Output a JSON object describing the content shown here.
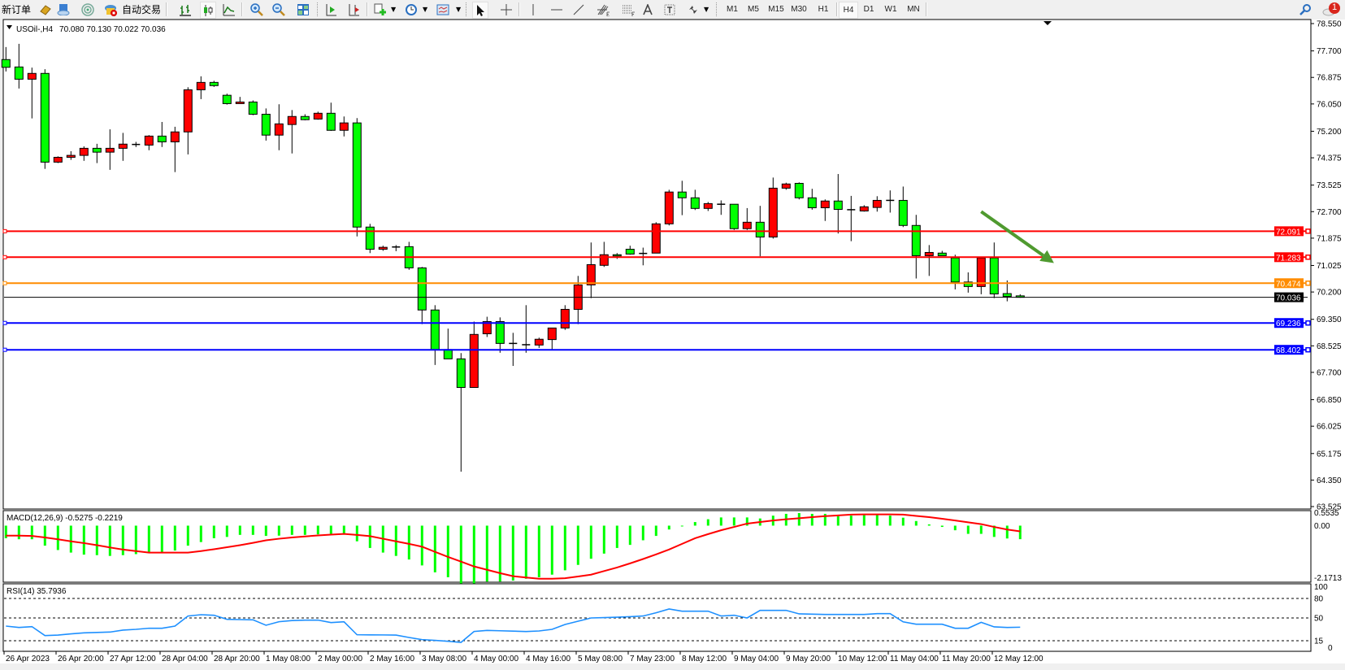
{
  "toolbar": {
    "new_order": "新订单",
    "auto_trading": "自动交易",
    "timeframes": [
      "M1",
      "M5",
      "M15",
      "M30",
      "H1",
      "H4",
      "D1",
      "W1",
      "MN"
    ],
    "active_timeframe": "H4",
    "notification_count": "1",
    "icons": [
      "gold-bars-icon",
      "cloud-icon",
      "signal-icon",
      "autotrading-icon",
      "bar-chart-icon",
      "candlestick-icon",
      "line-chart-icon",
      "zoom-in-icon",
      "zoom-out-icon",
      "tile-windows-icon",
      "autoscroll-icon",
      "chart-shift-icon",
      "indicators-icon",
      "periods-icon",
      "templates-icon",
      "cursor-icon",
      "crosshair-icon",
      "vertical-line-icon",
      "horizontal-line-icon",
      "trendline-icon",
      "fibonacci-fan-icon",
      "fibonacci-retracement-icon",
      "text-icon",
      "text-label-icon",
      "arrows-icon",
      "search-icon",
      "notification-icon"
    ]
  },
  "chart_header": {
    "symbol": "USOil-,H4",
    "ohlc": "70.080 70.130 70.022 70.036"
  },
  "chart_data": {
    "type": "candlestick",
    "symbol": "USOil-",
    "timeframe": "H4",
    "colors": {
      "bull": "#ff0000",
      "bear": "#00ff00",
      "outline": "#000000"
    },
    "ylim": [
      63.525,
      78.55
    ],
    "price_ticks": [
      "78.550",
      "77.700",
      "76.875",
      "76.050",
      "75.200",
      "74.375",
      "73.525",
      "72.700",
      "71.875",
      "71.025",
      "70.200",
      "69.350",
      "68.525",
      "67.700",
      "66.850",
      "66.025",
      "65.175",
      "64.350",
      "63.525"
    ],
    "time_labels": [
      "26 Apr 2023",
      "26 Apr 20:00",
      "27 Apr 12:00",
      "28 Apr 04:00",
      "28 Apr 20:00",
      "1 May 08:00",
      "2 May 00:00",
      "2 May 16:00",
      "3 May 08:00",
      "4 May 00:00",
      "4 May 16:00",
      "5 May 08:00",
      "7 May 23:00",
      "8 May 12:00",
      "9 May 04:00",
      "9 May 20:00",
      "10 May 12:00",
      "11 May 04:00",
      "11 May 20:00",
      "12 May 12:00"
    ],
    "ohlc": [
      [
        77.43,
        77.82,
        77.06,
        77.19
      ],
      [
        77.2,
        77.92,
        76.53,
        76.82
      ],
      [
        76.82,
        77.18,
        75.6,
        77.0
      ],
      [
        77.0,
        77.13,
        74.03,
        74.24
      ],
      [
        74.24,
        74.42,
        74.21,
        74.39
      ],
      [
        74.39,
        74.58,
        74.31,
        74.45
      ],
      [
        74.45,
        74.73,
        74.28,
        74.67
      ],
      [
        74.67,
        74.81,
        74.21,
        74.55
      ],
      [
        74.55,
        75.26,
        74.0,
        74.67
      ],
      [
        74.67,
        75.15,
        74.28,
        74.8
      ],
      [
        74.79,
        74.87,
        74.71,
        74.79
      ],
      [
        74.77,
        75.08,
        74.61,
        75.05
      ],
      [
        75.05,
        75.49,
        74.71,
        74.87
      ],
      [
        74.87,
        75.34,
        73.93,
        75.18
      ],
      [
        75.18,
        76.57,
        74.48,
        76.49
      ],
      [
        76.49,
        76.91,
        76.2,
        76.72
      ],
      [
        76.72,
        76.77,
        76.58,
        76.62
      ],
      [
        76.32,
        76.37,
        76.03,
        76.06
      ],
      [
        76.06,
        76.27,
        76.06,
        76.11
      ],
      [
        76.11,
        76.16,
        75.7,
        75.73
      ],
      [
        75.73,
        75.91,
        74.91,
        75.08
      ],
      [
        75.08,
        76.04,
        74.61,
        75.43
      ],
      [
        75.41,
        75.86,
        74.51,
        75.66
      ],
      [
        75.66,
        75.73,
        75.54,
        75.56
      ],
      [
        75.58,
        75.81,
        75.56,
        75.76
      ],
      [
        75.76,
        76.09,
        75.21,
        75.23
      ],
      [
        75.23,
        75.66,
        75.04,
        75.46
      ],
      [
        75.46,
        75.61,
        71.93,
        72.22
      ],
      [
        72.22,
        72.32,
        71.41,
        71.53
      ],
      [
        71.53,
        71.64,
        71.48,
        71.59
      ],
      [
        71.6,
        71.66,
        71.47,
        71.6
      ],
      [
        71.61,
        71.76,
        70.89,
        70.95
      ],
      [
        70.95,
        70.98,
        69.2,
        69.64
      ],
      [
        69.64,
        69.79,
        67.93,
        68.41
      ],
      [
        68.41,
        69.06,
        68.12,
        68.12
      ],
      [
        68.12,
        68.3,
        64.61,
        67.23
      ],
      [
        67.23,
        69.28,
        67.23,
        68.88
      ],
      [
        68.9,
        69.43,
        68.8,
        69.28
      ],
      [
        69.28,
        69.41,
        68.31,
        68.6
      ],
      [
        68.6,
        68.93,
        67.9,
        68.6
      ],
      [
        68.56,
        69.79,
        68.31,
        68.56
      ],
      [
        68.55,
        68.78,
        68.46,
        68.73
      ],
      [
        68.72,
        69.08,
        68.42,
        69.08
      ],
      [
        69.08,
        69.79,
        69.02,
        69.66
      ],
      [
        69.66,
        70.7,
        69.2,
        70.42
      ],
      [
        70.42,
        71.74,
        70.01,
        71.05
      ],
      [
        71.03,
        71.76,
        70.98,
        71.36
      ],
      [
        71.36,
        71.41,
        71.23,
        71.32
      ],
      [
        71.53,
        71.64,
        71.36,
        71.38
      ],
      [
        71.4,
        71.58,
        71.03,
        71.4
      ],
      [
        71.41,
        72.37,
        71.41,
        72.32
      ],
      [
        72.32,
        73.38,
        72.27,
        73.31
      ],
      [
        73.31,
        73.66,
        72.59,
        73.13
      ],
      [
        73.13,
        73.38,
        72.75,
        72.8
      ],
      [
        72.8,
        73.0,
        72.72,
        72.95
      ],
      [
        72.93,
        73.05,
        72.6,
        72.93
      ],
      [
        72.93,
        72.93,
        72.13,
        72.17
      ],
      [
        72.17,
        72.81,
        72.13,
        72.37
      ],
      [
        72.37,
        72.88,
        71.31,
        71.91
      ],
      [
        71.91,
        73.76,
        71.86,
        73.43
      ],
      [
        73.43,
        73.6,
        73.38,
        73.56
      ],
      [
        73.58,
        73.61,
        73.08,
        73.13
      ],
      [
        73.13,
        73.41,
        72.76,
        72.82
      ],
      [
        72.82,
        73.08,
        72.41,
        73.03
      ],
      [
        73.03,
        73.87,
        72.02,
        72.77
      ],
      [
        72.76,
        73.19,
        71.78,
        72.76
      ],
      [
        72.72,
        72.9,
        72.7,
        72.85
      ],
      [
        72.83,
        73.18,
        72.7,
        73.05
      ],
      [
        73.05,
        73.36,
        72.67,
        73.05
      ],
      [
        73.05,
        73.48,
        72.22,
        72.27
      ],
      [
        72.27,
        72.6,
        70.62,
        71.33
      ],
      [
        71.33,
        71.66,
        70.7,
        71.43
      ],
      [
        71.41,
        71.48,
        71.33,
        71.33
      ],
      [
        71.26,
        71.36,
        70.28,
        70.51
      ],
      [
        70.51,
        70.81,
        70.18,
        70.37
      ],
      [
        70.37,
        71.26,
        70.13,
        71.26
      ],
      [
        71.26,
        71.74,
        70.01,
        70.14
      ],
      [
        70.15,
        70.56,
        69.91,
        70.06
      ],
      [
        70.08,
        70.13,
        70.022,
        70.036
      ]
    ],
    "price_lines": [
      {
        "value": 72.091,
        "label": "72.091",
        "color": "#ff0000"
      },
      {
        "value": 71.283,
        "label": "71.283",
        "color": "#ff0000"
      },
      {
        "value": 70.474,
        "label": "70.474",
        "color": "#ff8c00"
      },
      {
        "value": 70.036,
        "label": "70.036",
        "color": "#000000"
      },
      {
        "value": 69.236,
        "label": "69.236",
        "color": "#0000ff"
      },
      {
        "value": 68.402,
        "label": "68.402",
        "color": "#0000ff"
      }
    ],
    "annotation_arrow": {
      "from": {
        "bar": 75,
        "price": 72.7
      },
      "to": {
        "bar": 80.6,
        "price": 71.1
      },
      "color": "#4f9a2f"
    },
    "macd": {
      "label": "MACD(12,26,9) -0.5275 -0.2219",
      "ylim": [
        -2.1713,
        0.5535
      ],
      "ticks": [
        "0.5535",
        "0.00",
        "-2.1713"
      ],
      "hist_color": "#00ff00",
      "signal_color": "#ff0000",
      "histogram": [
        -0.49,
        -0.53,
        -0.53,
        -0.78,
        -0.95,
        -1.05,
        -1.13,
        -1.15,
        -1.18,
        -1.15,
        -1.11,
        -1.05,
        -1.03,
        -0.97,
        -0.78,
        -0.64,
        -0.49,
        -0.44,
        -0.36,
        -0.36,
        -0.4,
        -0.39,
        -0.36,
        -0.36,
        -0.34,
        -0.32,
        -0.32,
        -0.61,
        -0.87,
        -1.05,
        -1.18,
        -1.32,
        -1.55,
        -1.82,
        -2.01,
        -2.25,
        -2.25,
        -2.18,
        -2.18,
        -2.14,
        -2.07,
        -2.01,
        -1.91,
        -1.74,
        -1.53,
        -1.29,
        -1.09,
        -0.87,
        -0.75,
        -0.57,
        -0.4,
        -0.15,
        -0.01,
        0.14,
        0.25,
        0.32,
        0.32,
        0.32,
        0.28,
        0.39,
        0.46,
        0.49,
        0.46,
        0.46,
        0.37,
        0.39,
        0.41,
        0.41,
        0.39,
        0.31,
        0.18,
        0.05,
        -0.05,
        -0.18,
        -0.32,
        -0.32,
        -0.44,
        -0.5,
        -0.5275
      ],
      "signal": [
        -0.39,
        -0.39,
        -0.4,
        -0.46,
        -0.53,
        -0.61,
        -0.68,
        -0.76,
        -0.85,
        -0.93,
        -0.99,
        -1.05,
        -1.05,
        -1.05,
        -1.05,
        -0.99,
        -0.92,
        -0.84,
        -0.76,
        -0.67,
        -0.57,
        -0.51,
        -0.46,
        -0.42,
        -0.38,
        -0.35,
        -0.32,
        -0.36,
        -0.41,
        -0.51,
        -0.61,
        -0.71,
        -0.82,
        -1.02,
        -1.22,
        -1.4,
        -1.59,
        -1.72,
        -1.85,
        -1.97,
        -2.02,
        -2.07,
        -2.07,
        -2.05,
        -1.98,
        -1.91,
        -1.77,
        -1.63,
        -1.47,
        -1.3,
        -1.12,
        -0.93,
        -0.71,
        -0.49,
        -0.33,
        -0.18,
        -0.05,
        0.08,
        0.14,
        0.2,
        0.25,
        0.29,
        0.33,
        0.37,
        0.4,
        0.43,
        0.44,
        0.44,
        0.44,
        0.43,
        0.38,
        0.33,
        0.27,
        0.2,
        0.13,
        0.06,
        -0.05,
        -0.15,
        -0.2219
      ]
    },
    "rsi": {
      "label": "RSI(14) 35.7936",
      "ylim": [
        0,
        100
      ],
      "ticks": [
        "100",
        "80",
        "50",
        "15",
        "0"
      ],
      "levels": [
        80,
        50,
        15
      ],
      "color": "#1e90ff",
      "values": [
        37.5,
        35.4,
        36.7,
        22.9,
        23.7,
        25.5,
        27.1,
        27.7,
        28.3,
        31.3,
        32.5,
        34.2,
        34.2,
        37.5,
        53,
        55,
        54.2,
        47.9,
        47.5,
        47.1,
        38.8,
        44.2,
        46,
        46.7,
        46.7,
        42.9,
        44.2,
        24.2,
        24,
        23.9,
        23.7,
        20,
        16.7,
        15.5,
        14.2,
        12.5,
        29.2,
        30.8,
        30.3,
        29.8,
        29.2,
        30,
        32.5,
        40,
        45,
        50,
        50.6,
        51.2,
        52,
        53,
        58,
        63.8,
        60.4,
        60.4,
        60.4,
        53,
        54.2,
        50,
        61.7,
        61.7,
        61.7,
        56.3,
        55.8,
        55.4,
        55.4,
        55.4,
        55.4,
        56.7,
        56.7,
        44,
        40.4,
        40.4,
        40.4,
        34.2,
        34.2,
        43.3,
        36.3,
        35.4,
        35.79
      ]
    }
  }
}
